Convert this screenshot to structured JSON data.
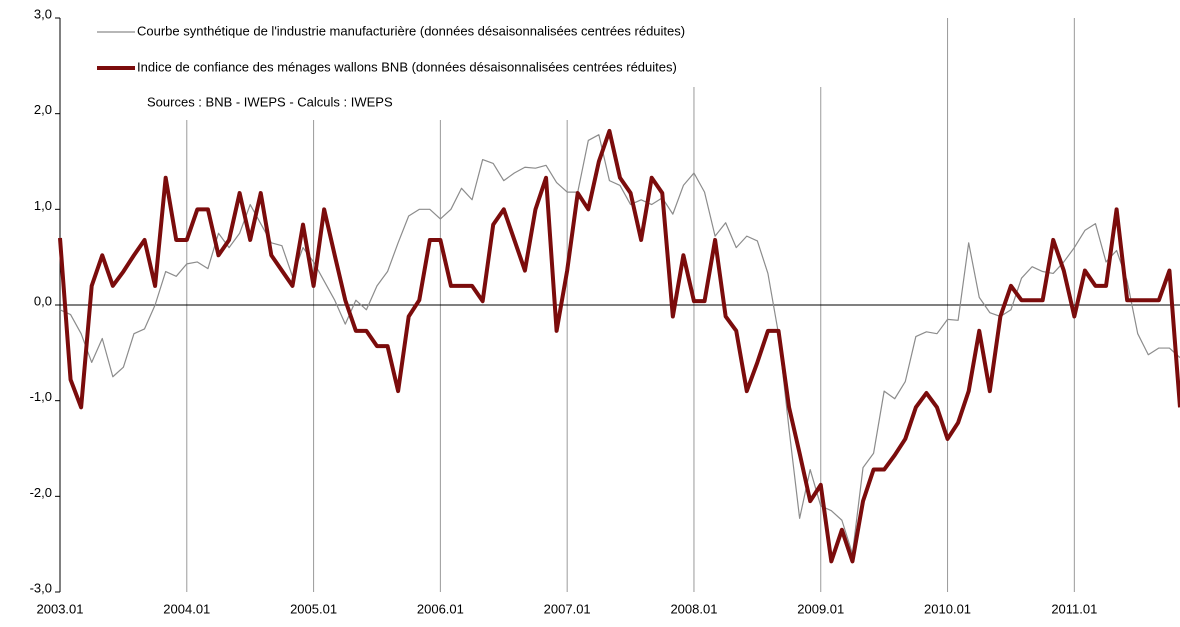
{
  "chart_data": {
    "type": "line",
    "series": [
      {
        "name": "Courbe synthétique de l'industrie manufacturière (données désaisonnalisées centrées réduites)",
        "color": "#8c8c8c",
        "values": [
          -0.05,
          -0.1,
          -0.3,
          -0.6,
          -0.35,
          -0.75,
          -0.65,
          -0.3,
          -0.25,
          0.0,
          0.35,
          0.3,
          0.43,
          0.45,
          0.38,
          0.75,
          0.6,
          0.75,
          1.05,
          0.85,
          0.65,
          0.62,
          0.3,
          0.6,
          0.45,
          0.25,
          0.05,
          -0.2,
          0.05,
          -0.05,
          0.2,
          0.35,
          0.65,
          0.93,
          1.0,
          1.0,
          0.9,
          1.0,
          1.22,
          1.1,
          1.52,
          1.48,
          1.3,
          1.38,
          1.44,
          1.43,
          1.46,
          1.28,
          1.18,
          1.18,
          1.72,
          1.78,
          1.3,
          1.25,
          1.05,
          1.1,
          1.05,
          1.12,
          0.95,
          1.25,
          1.38,
          1.18,
          0.72,
          0.86,
          0.6,
          0.72,
          0.67,
          0.33,
          -0.3,
          -1.3,
          -2.23,
          -1.72,
          -2.1,
          -2.15,
          -2.25,
          -2.6,
          -1.7,
          -1.55,
          -0.9,
          -0.98,
          -0.8,
          -0.33,
          -0.28,
          -0.3,
          -0.15,
          -0.16,
          0.65,
          0.08,
          -0.08,
          -0.12,
          -0.05,
          0.28,
          0.4,
          0.35,
          0.33,
          0.45,
          0.6,
          0.78,
          0.85,
          0.45,
          0.57,
          0.25,
          -0.3,
          -0.52,
          -0.45,
          -0.45,
          -0.55
        ]
      },
      {
        "name": "Indice de confiance des ménages wallons BNB (données désaisonnalisées centrées réduites)",
        "color": "#7b0c0c",
        "values": [
          0.7,
          -0.78,
          -1.07,
          0.2,
          0.52,
          0.2,
          0.35,
          0.52,
          0.68,
          0.2,
          1.33,
          0.68,
          0.68,
          1.0,
          1.0,
          0.52,
          0.68,
          1.17,
          0.68,
          1.17,
          0.52,
          0.36,
          0.2,
          0.84,
          0.2,
          1.0,
          0.52,
          0.05,
          -0.27,
          -0.27,
          -0.43,
          -0.43,
          -0.9,
          -0.12,
          0.05,
          0.68,
          0.68,
          0.2,
          0.2,
          0.2,
          0.04,
          0.84,
          1.0,
          0.68,
          0.36,
          1.0,
          1.33,
          -0.27,
          0.36,
          1.17,
          1.0,
          1.5,
          1.82,
          1.33,
          1.17,
          0.68,
          1.33,
          1.17,
          -0.12,
          0.52,
          0.04,
          0.04,
          0.68,
          -0.12,
          -0.27,
          -0.9,
          -0.6,
          -0.27,
          -0.27,
          -1.07,
          -1.55,
          -2.05,
          -1.88,
          -2.68,
          -2.35,
          -2.68,
          -2.05,
          -1.72,
          -1.72,
          -1.57,
          -1.4,
          -1.07,
          -0.92,
          -1.07,
          -1.4,
          -1.23,
          -0.9,
          -0.27,
          -0.9,
          -0.12,
          0.2,
          0.05,
          0.05,
          0.05,
          0.68,
          0.36,
          -0.12,
          0.36,
          0.2,
          0.2,
          1.0,
          0.05,
          0.05,
          0.05,
          0.05,
          0.36,
          -1.07
        ]
      }
    ],
    "categories": [
      "2003.01",
      null,
      null,
      null,
      null,
      null,
      null,
      null,
      null,
      null,
      null,
      null,
      "2004.01",
      null,
      null,
      null,
      null,
      null,
      null,
      null,
      null,
      null,
      null,
      null,
      "2005.01",
      null,
      null,
      null,
      null,
      null,
      null,
      null,
      null,
      null,
      null,
      null,
      "2006.01",
      null,
      null,
      null,
      null,
      null,
      null,
      null,
      null,
      null,
      null,
      null,
      "2007.01",
      null,
      null,
      null,
      null,
      null,
      null,
      null,
      null,
      null,
      null,
      null,
      "2008.01",
      null,
      null,
      null,
      null,
      null,
      null,
      null,
      null,
      null,
      null,
      null,
      "2009.01",
      null,
      null,
      null,
      null,
      null,
      null,
      null,
      null,
      null,
      null,
      null,
      "2010.01",
      null,
      null,
      null,
      null,
      null,
      null,
      null,
      null,
      null,
      null,
      null,
      "2011.01",
      null,
      null,
      null,
      null,
      null,
      null,
      null,
      null,
      null,
      null
    ],
    "ylim": [
      -3,
      3
    ],
    "yticks": [
      {
        "value": 3,
        "label": "3,0"
      },
      {
        "value": 2,
        "label": "2,0"
      },
      {
        "value": 1,
        "label": "1,0"
      },
      {
        "value": 0,
        "label": "0,0"
      },
      {
        "value": -1,
        "label": "-1,0"
      },
      {
        "value": -2,
        "label": "-2,0"
      },
      {
        "value": -3,
        "label": "-3,0"
      }
    ],
    "annotation": "Sources : BNB - IWEPS - Calculs : IWEPS"
  }
}
